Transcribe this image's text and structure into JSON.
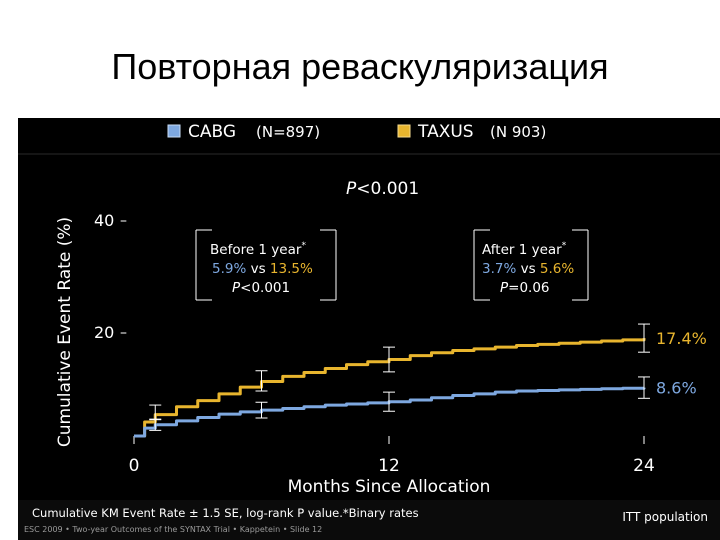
{
  "slide": {
    "title": "Повторная реваскуляризация"
  },
  "chart_data": {
    "type": "line",
    "ylabel": "Cumulative Event Rate (%)",
    "xlabel": "Months Since Allocation",
    "x_ticks": [
      "0",
      "12",
      "24"
    ],
    "y_ticks": [
      "40",
      "20"
    ],
    "xlim": [
      0,
      24
    ],
    "ylim": [
      0,
      50
    ],
    "legend": [
      {
        "name": "CABG",
        "suffix": "(N=897)",
        "color": "#7ea8e0"
      },
      {
        "name": "TAXUS",
        "suffix": "(N  903)",
        "color": "#e8b52e"
      }
    ],
    "p_overall": {
      "italic": "P",
      "rest": "<0.001"
    },
    "box_before": {
      "title": "Before 1 year",
      "star": "*",
      "v1": "5.9%",
      "vs": " vs ",
      "v2": "13.5%",
      "p_italic": "P",
      "p_rest": "<0.001"
    },
    "box_after": {
      "title": "After 1 year",
      "star": "*",
      "v1": "3.7%",
      "vs": " vs ",
      "v2": "5.6%",
      "p_italic": "P",
      "p_rest": "=0.06"
    },
    "series": [
      {
        "name": "TAXUS",
        "end_label": "17.4%",
        "color": "#e8b52e",
        "x": [
          0,
          0.5,
          1,
          2,
          3,
          4,
          5,
          6,
          7,
          8,
          9,
          10,
          11,
          12,
          13,
          14,
          15,
          16,
          17,
          18,
          19,
          20,
          21,
          22,
          23,
          24
        ],
        "y": [
          0,
          2.5,
          3.8,
          5.2,
          6.3,
          7.5,
          8.7,
          9.7,
          10.6,
          11.3,
          12.0,
          12.7,
          13.2,
          13.6,
          14.3,
          14.8,
          15.2,
          15.5,
          15.8,
          16.1,
          16.3,
          16.5,
          16.7,
          16.9,
          17.1,
          17.4
        ],
        "error_x": [
          1,
          6,
          12,
          24
        ],
        "error_y": [
          4.2,
          9.8,
          13.6,
          17.4
        ],
        "error_half": [
          1.3,
          1.8,
          2.2,
          2.5
        ]
      },
      {
        "name": "CABG",
        "end_label": "8.6%",
        "color": "#7ea8e0",
        "x": [
          0,
          0.5,
          1,
          2,
          3,
          4,
          5,
          6,
          7,
          8,
          9,
          10,
          11,
          12,
          13,
          14,
          15,
          16,
          17,
          18,
          19,
          20,
          21,
          22,
          23,
          24
        ],
        "y": [
          0,
          1.4,
          2.0,
          2.7,
          3.3,
          3.9,
          4.3,
          4.6,
          4.9,
          5.2,
          5.5,
          5.7,
          5.9,
          6.1,
          6.4,
          6.8,
          7.2,
          7.5,
          7.8,
          8.0,
          8.1,
          8.2,
          8.3,
          8.4,
          8.5,
          8.6
        ],
        "error_x": [
          1,
          6,
          12,
          24
        ],
        "error_y": [
          2.0,
          4.6,
          6.1,
          8.6
        ],
        "error_half": [
          1.0,
          1.4,
          1.7,
          1.9
        ]
      }
    ]
  },
  "footer": {
    "note": "Cumulative KM Event Rate ± 1.5 SE, log-rank P value.*Binary rates",
    "population": "ITT population",
    "credit": "ESC 2009 • Two-year Outcomes of the SYNTAX Trial • Kappetein • Slide 12"
  }
}
